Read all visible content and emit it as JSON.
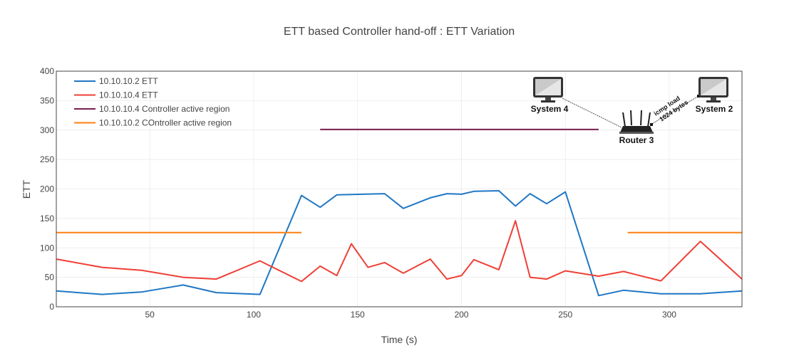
{
  "chart_data": {
    "type": "line",
    "title": "ETT based Controller hand-off : ETT Variation",
    "xlabel": "Time (s)",
    "ylabel": "ETT",
    "xlim": [
      5,
      335
    ],
    "ylim": [
      0,
      400
    ],
    "x_ticks": [
      50,
      100,
      150,
      200,
      250,
      300
    ],
    "y_ticks": [
      0,
      50,
      100,
      150,
      200,
      250,
      300,
      350,
      400
    ],
    "grid": true,
    "legend_position": "top-left",
    "series": [
      {
        "name": "10.10.10.2 ETT",
        "color": "#1f77c4",
        "points": [
          [
            5,
            27
          ],
          [
            27,
            21
          ],
          [
            46,
            25
          ],
          [
            66,
            37
          ],
          [
            82,
            24
          ],
          [
            103,
            21
          ],
          [
            123,
            189
          ],
          [
            132,
            169
          ],
          [
            140,
            190
          ],
          [
            163,
            192
          ],
          [
            172,
            167
          ],
          [
            185,
            185
          ],
          [
            193,
            192
          ],
          [
            200,
            191
          ],
          [
            206,
            196
          ],
          [
            218,
            197
          ],
          [
            226,
            171
          ],
          [
            233,
            192
          ],
          [
            241,
            175
          ],
          [
            250,
            195
          ],
          [
            266,
            19
          ],
          [
            278,
            28
          ],
          [
            296,
            22
          ],
          [
            315,
            22
          ],
          [
            335,
            27
          ]
        ]
      },
      {
        "name": "10.10.10.4 ETT",
        "color": "#ef3f35",
        "points": [
          [
            5,
            81
          ],
          [
            27,
            67
          ],
          [
            46,
            62
          ],
          [
            66,
            50
          ],
          [
            82,
            47
          ],
          [
            103,
            78
          ],
          [
            123,
            43
          ],
          [
            132,
            69
          ],
          [
            140,
            53
          ],
          [
            147,
            107
          ],
          [
            155,
            67
          ],
          [
            163,
            75
          ],
          [
            172,
            57
          ],
          [
            185,
            81
          ],
          [
            193,
            47
          ],
          [
            200,
            53
          ],
          [
            206,
            80
          ],
          [
            218,
            63
          ],
          [
            226,
            146
          ],
          [
            233,
            50
          ],
          [
            241,
            47
          ],
          [
            250,
            61
          ],
          [
            266,
            52
          ],
          [
            278,
            60
          ],
          [
            296,
            44
          ],
          [
            315,
            111
          ],
          [
            335,
            47
          ]
        ]
      },
      {
        "name": "10.10.10.4 Controller active region",
        "color": "#7a1f4f",
        "segments": [
          [
            [
              132,
              301
            ],
            [
              266,
              301
            ]
          ]
        ]
      },
      {
        "name": "10.10.10.2 COntroller active region",
        "color": "#ff7f0e",
        "segments": [
          [
            [
              5,
              126
            ],
            [
              123,
              126
            ]
          ],
          [
            [
              280,
              126
            ],
            [
              335,
              126
            ]
          ]
        ]
      }
    ]
  },
  "inset": {
    "system4": "System 4",
    "system2": "System 2",
    "router": "Router 3",
    "icmp_line1": "icmp load",
    "icmp_line2": "1024 bytes"
  }
}
